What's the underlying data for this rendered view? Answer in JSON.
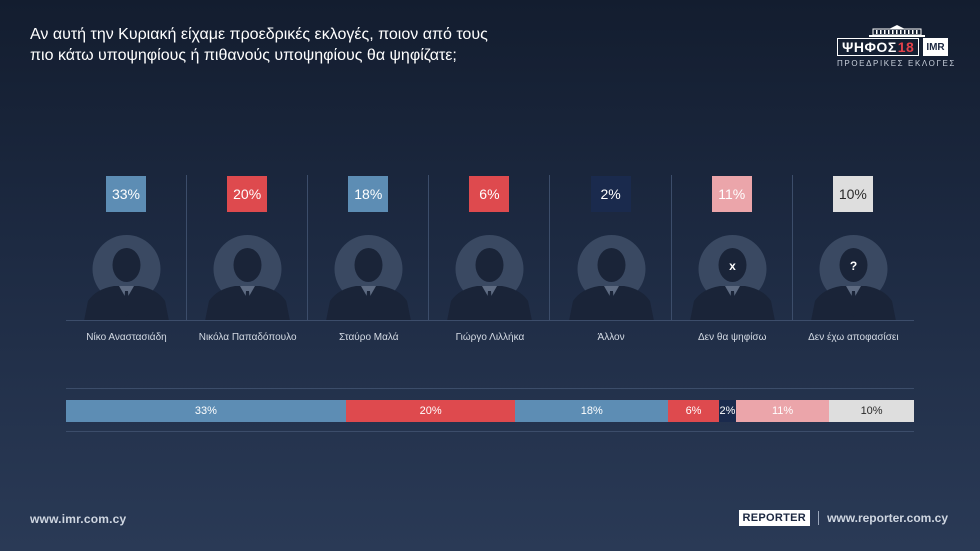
{
  "question": {
    "line1": "Αν αυτή την Κυριακή είχαμε προεδρικές εκλογές, ποιον από τους",
    "line2": "πιο κάτω υποψηφίους ή πιθανούς υποψηφίους θα ψηφίζατε;"
  },
  "brand": {
    "title": "ΨΗΦΟΣ",
    "year": "18",
    "imr": "IMR",
    "subtitle": "ΠΡΟΕΔΡΙΚΕΣ ΕΚΛΟΓΕΣ"
  },
  "chart_data": {
    "type": "bar",
    "categories": [
      "Νίκο Αναστασιάδη",
      "Νικόλα Παπαδόπουλο",
      "Σταύρο Μαλά",
      "Γιώργο Λιλλήκα",
      "Άλλον",
      "Δεν θα ψηφίσω",
      "Δεν έχω αποφασίσει"
    ],
    "values": [
      33,
      20,
      18,
      6,
      2,
      11,
      10
    ],
    "value_labels": [
      "33%",
      "20%",
      "18%",
      "6%",
      "2%",
      "11%",
      "10%"
    ],
    "colors": [
      "#5d8db4",
      "#de4a4e",
      "#5d8db4",
      "#de4a4e",
      "#1a2a4d",
      "#eba5aa",
      "#dedede"
    ],
    "label_colors": [
      "#ffffff",
      "#ffffff",
      "#ffffff",
      "#ffffff",
      "#ffffff",
      "#ffffff",
      "#2a2a2a"
    ],
    "avatar_marks": [
      "",
      "",
      "",
      "",
      "",
      "x",
      "?"
    ],
    "unit": "%",
    "stacked_bar": true
  },
  "footer": {
    "left_url": "www.imr.com.cy",
    "reporter_logo": "REPORTER",
    "right_url": "www.reporter.com.cy"
  }
}
